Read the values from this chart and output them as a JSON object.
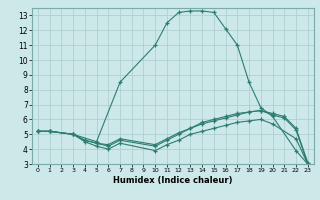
{
  "xlabel": "Humidex (Indice chaleur)",
  "bg_color": "#cce8e8",
  "grid_color": "#aacccc",
  "line_color": "#2d7d6e",
  "xlim": [
    -0.5,
    23.5
  ],
  "ylim": [
    3,
    13.5
  ],
  "xticks": [
    0,
    1,
    2,
    3,
    4,
    5,
    6,
    7,
    8,
    9,
    10,
    11,
    12,
    13,
    14,
    15,
    16,
    17,
    18,
    19,
    20,
    21,
    22,
    23
  ],
  "yticks": [
    3,
    4,
    5,
    6,
    7,
    8,
    9,
    10,
    11,
    12,
    13
  ],
  "line1_x": [
    0,
    1,
    3,
    5,
    7,
    10,
    11,
    12,
    13,
    14,
    15,
    16,
    17,
    18,
    19,
    20,
    22,
    23
  ],
  "line1_y": [
    5.2,
    5.2,
    5.0,
    4.5,
    8.5,
    11.0,
    12.5,
    13.2,
    13.3,
    13.3,
    13.2,
    12.1,
    11.0,
    8.5,
    6.8,
    6.2,
    3.9,
    3.0
  ],
  "line2_x": [
    0,
    1,
    3,
    4,
    5,
    6,
    7,
    10,
    11,
    12,
    13,
    14,
    15,
    16,
    17,
    18,
    19,
    20,
    21,
    22,
    23
  ],
  "line2_y": [
    5.2,
    5.2,
    5.0,
    4.6,
    4.4,
    4.2,
    4.6,
    4.2,
    4.6,
    5.0,
    5.4,
    5.7,
    5.9,
    6.1,
    6.3,
    6.5,
    6.6,
    6.3,
    6.1,
    5.3,
    3.0
  ],
  "line3_x": [
    0,
    1,
    3,
    4,
    5,
    6,
    7,
    10,
    11,
    12,
    13,
    14,
    15,
    16,
    17,
    18,
    19,
    20,
    21,
    22,
    23
  ],
  "line3_y": [
    5.2,
    5.2,
    5.0,
    4.6,
    4.4,
    4.3,
    4.7,
    4.3,
    4.7,
    5.1,
    5.4,
    5.8,
    6.0,
    6.2,
    6.4,
    6.5,
    6.6,
    6.4,
    6.2,
    5.4,
    3.1
  ],
  "line4_x": [
    0,
    1,
    3,
    4,
    5,
    6,
    7,
    10,
    11,
    12,
    13,
    14,
    15,
    16,
    17,
    18,
    19,
    20,
    22,
    23
  ],
  "line4_y": [
    5.2,
    5.2,
    5.0,
    4.5,
    4.2,
    4.0,
    4.4,
    3.9,
    4.3,
    4.6,
    5.0,
    5.2,
    5.4,
    5.6,
    5.8,
    5.9,
    6.0,
    5.7,
    4.7,
    3.0
  ]
}
